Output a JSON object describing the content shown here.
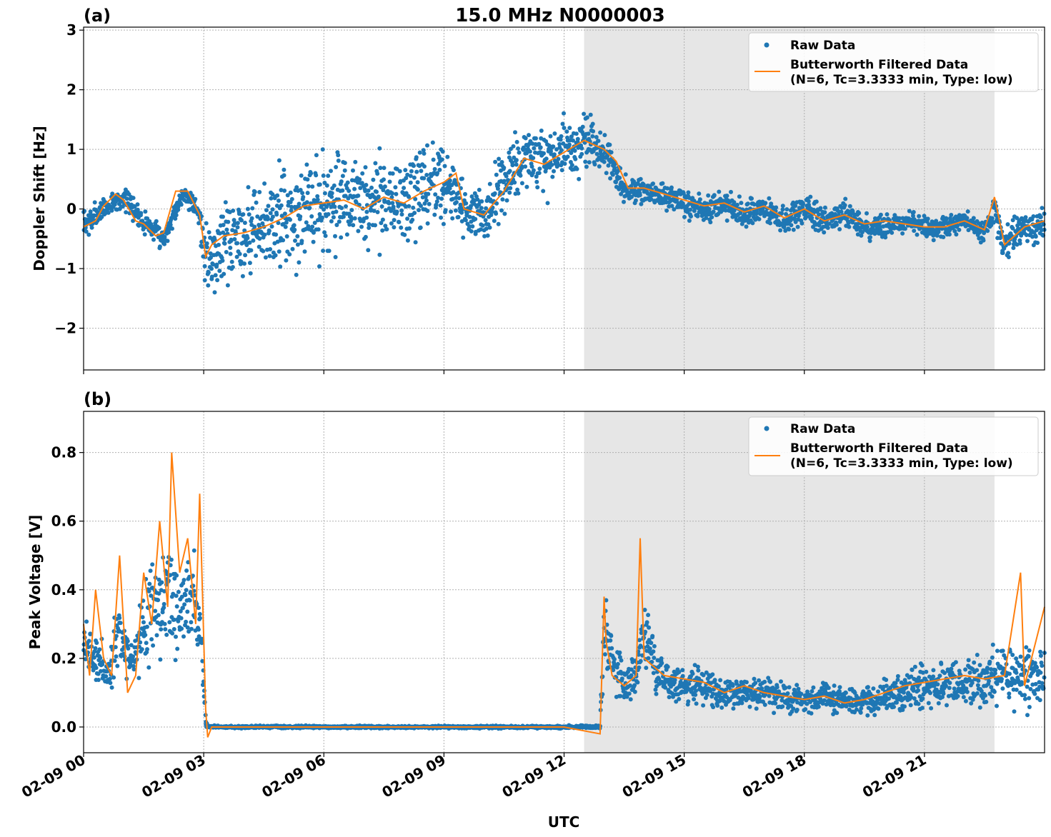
{
  "figure": {
    "title": "15.0 MHz N0000003",
    "xlabel": "UTC",
    "xtick_labels": [
      "02-09 00",
      "02-09 03",
      "02-09 06",
      "02-09 09",
      "02-09 12",
      "02-09 15",
      "02-09 18",
      "02-09 21"
    ],
    "shade_color": "#e6e6e6",
    "raw_color": "#1f77b4",
    "filtered_color": "#ff7f0e"
  },
  "chart_data": [
    {
      "panel_label": "(a)",
      "type": "scatter",
      "ylabel": "Doppler Shift [Hz]",
      "x_unit": "hours UTC on 02-09",
      "xlim": [
        0,
        24
      ],
      "ylim": [
        -2.7,
        3.05
      ],
      "yticks": [
        -2,
        -1,
        0,
        1,
        2,
        3
      ],
      "ytick_labels": [
        "−2",
        "−1",
        "0",
        "1",
        "2",
        "3"
      ],
      "shaded_interval": [
        12.5,
        22.75
      ],
      "grid": true,
      "legend_position": "top-right",
      "legend": [
        "Raw Data",
        "Butterworth Filtered Data",
        "(N=6, Tc=3.3333 min, Type: low)"
      ],
      "series": [
        {
          "name": "Raw Data",
          "kind": "points",
          "x_hours": [
            0,
            0.5,
            1,
            1.5,
            2,
            2.5,
            2.9,
            3.05,
            3.5,
            4,
            4.5,
            5,
            5.5,
            6,
            6.5,
            7,
            7.5,
            8,
            8.5,
            9,
            9.5,
            10,
            10.5,
            11,
            11.5,
            12,
            12.5,
            13,
            13.3,
            13.5,
            14,
            14.5,
            15,
            15.5,
            16,
            16.5,
            17,
            17.5,
            18,
            18.5,
            19,
            19.5,
            20,
            20.5,
            21,
            21.5,
            22,
            22.5,
            22.75,
            23,
            23.5,
            24
          ],
          "median": [
            -0.3,
            0.0,
            0.2,
            -0.2,
            -0.5,
            0.3,
            -0.1,
            -0.9,
            -0.5,
            -0.4,
            -0.3,
            -0.1,
            0.0,
            0.1,
            0.2,
            0.0,
            0.2,
            0.1,
            0.3,
            0.5,
            -0.1,
            -0.1,
            0.4,
            0.9,
            0.8,
            1.0,
            1.1,
            1.0,
            0.6,
            0.3,
            0.3,
            0.2,
            0.1,
            0.0,
            0.1,
            -0.1,
            0.0,
            -0.2,
            0.0,
            -0.2,
            -0.1,
            -0.3,
            -0.3,
            -0.2,
            -0.3,
            -0.3,
            -0.2,
            -0.4,
            0.0,
            -0.6,
            -0.3,
            -0.3
          ],
          "spread": [
            0.3,
            0.2,
            0.2,
            0.2,
            0.2,
            0.15,
            0.25,
            0.6,
            0.75,
            0.8,
            0.85,
            0.9,
            0.9,
            0.9,
            0.9,
            0.9,
            0.9,
            0.85,
            0.8,
            0.75,
            0.55,
            0.5,
            0.55,
            0.6,
            0.6,
            0.55,
            0.5,
            0.4,
            0.3,
            0.25,
            0.25,
            0.2,
            0.25,
            0.25,
            0.25,
            0.25,
            0.25,
            0.25,
            0.25,
            0.25,
            0.25,
            0.25,
            0.25,
            0.2,
            0.2,
            0.2,
            0.2,
            0.2,
            0.3,
            0.3,
            0.3,
            0.3
          ]
        },
        {
          "name": "Butterworth Filtered Data",
          "kind": "line",
          "x_hours": [
            0,
            0.3,
            0.5,
            0.8,
            1,
            1.3,
            1.5,
            1.8,
            2,
            2.3,
            2.6,
            2.9,
            3.05,
            3.2,
            3.5,
            4,
            4.5,
            5,
            5.5,
            6,
            6.5,
            7,
            7.5,
            8,
            8.5,
            9,
            9.3,
            9.5,
            10,
            10.5,
            11,
            11.5,
            12,
            12.5,
            13,
            13.3,
            13.6,
            14,
            14.5,
            15,
            15.5,
            16,
            16.5,
            17,
            17.5,
            18,
            18.5,
            19,
            19.5,
            20,
            20.5,
            21,
            21.5,
            22,
            22.5,
            22.75,
            23,
            23.5,
            24
          ],
          "y": [
            -0.3,
            -0.2,
            0.05,
            0.25,
            0.15,
            -0.2,
            -0.25,
            -0.45,
            -0.4,
            0.3,
            0.3,
            -0.1,
            -0.8,
            -0.6,
            -0.45,
            -0.4,
            -0.3,
            -0.15,
            0.05,
            0.1,
            0.15,
            0.0,
            0.2,
            0.1,
            0.3,
            0.45,
            0.6,
            0.0,
            -0.1,
            0.3,
            0.85,
            0.75,
            0.95,
            1.15,
            1.0,
            0.8,
            0.35,
            0.35,
            0.25,
            0.15,
            0.05,
            0.1,
            -0.05,
            0.05,
            -0.15,
            0.0,
            -0.2,
            -0.1,
            -0.25,
            -0.2,
            -0.25,
            -0.3,
            -0.3,
            -0.2,
            -0.35,
            0.2,
            -0.6,
            -0.3,
            -0.2
          ]
        }
      ]
    },
    {
      "panel_label": "(b)",
      "type": "scatter",
      "ylabel": "Peak Voltage [V]",
      "x_unit": "hours UTC on 02-09",
      "xlim": [
        0,
        24
      ],
      "ylim": [
        -0.075,
        0.92
      ],
      "yticks": [
        0.0,
        0.2,
        0.4,
        0.6,
        0.8
      ],
      "ytick_labels": [
        "0.0",
        "0.2",
        "0.4",
        "0.6",
        "0.8"
      ],
      "shaded_interval": [
        12.5,
        22.75
      ],
      "grid": true,
      "legend_position": "top-right",
      "legend": [
        "Raw Data",
        "Butterworth Filtered Data",
        "(N=6, Tc=3.3333 min, Type: low)"
      ],
      "series": [
        {
          "name": "Raw Data",
          "kind": "points",
          "x_hours": [
            0,
            0.3,
            0.6,
            0.9,
            1.2,
            1.5,
            1.8,
            2.1,
            2.4,
            2.7,
            2.9,
            3.05,
            3.1,
            4,
            6,
            8,
            10,
            12,
            12.9,
            13.0,
            13.2,
            13.5,
            13.8,
            14.0,
            14.3,
            14.6,
            15,
            15.5,
            16,
            16.5,
            17,
            17.5,
            18,
            18.5,
            19,
            19.5,
            20,
            20.5,
            21,
            21.5,
            22,
            22.5,
            23,
            23.5,
            24
          ],
          "median": [
            0.25,
            0.2,
            0.15,
            0.3,
            0.18,
            0.3,
            0.35,
            0.4,
            0.3,
            0.4,
            0.3,
            0.02,
            0.0,
            0.0,
            0.0,
            0.0,
            0.0,
            0.0,
            0.0,
            0.3,
            0.2,
            0.12,
            0.15,
            0.3,
            0.15,
            0.14,
            0.12,
            0.12,
            0.1,
            0.1,
            0.1,
            0.09,
            0.08,
            0.09,
            0.08,
            0.07,
            0.09,
            0.1,
            0.12,
            0.12,
            0.13,
            0.14,
            0.15,
            0.14,
            0.16
          ],
          "spread": [
            0.1,
            0.08,
            0.07,
            0.12,
            0.08,
            0.15,
            0.15,
            0.2,
            0.15,
            0.18,
            0.12,
            0.02,
            0.004,
            0.004,
            0.004,
            0.004,
            0.004,
            0.004,
            0.006,
            0.15,
            0.1,
            0.06,
            0.08,
            0.12,
            0.08,
            0.07,
            0.06,
            0.06,
            0.05,
            0.05,
            0.05,
            0.05,
            0.04,
            0.05,
            0.04,
            0.04,
            0.05,
            0.06,
            0.07,
            0.07,
            0.08,
            0.08,
            0.09,
            0.09,
            0.1
          ]
        },
        {
          "name": "Butterworth Filtered Data",
          "kind": "line",
          "x_hours": [
            0,
            0.15,
            0.3,
            0.5,
            0.7,
            0.9,
            1.1,
            1.3,
            1.5,
            1.7,
            1.9,
            2.1,
            2.2,
            2.4,
            2.6,
            2.8,
            2.9,
            3.05,
            3.1,
            3.2,
            6,
            9,
            12,
            12.9,
            13.0,
            13.05,
            13.2,
            13.5,
            13.8,
            13.9,
            14.0,
            14.2,
            14.5,
            15,
            15.5,
            16,
            16.5,
            17,
            17.5,
            18,
            18.5,
            19,
            19.5,
            20,
            20.5,
            21,
            21.5,
            22,
            22.5,
            23,
            23.4,
            23.5,
            24
          ],
          "y": [
            0.3,
            0.15,
            0.4,
            0.2,
            0.15,
            0.5,
            0.1,
            0.15,
            0.45,
            0.3,
            0.6,
            0.35,
            0.8,
            0.45,
            0.55,
            0.3,
            0.68,
            0.05,
            -0.03,
            0.0,
            0.0,
            0.0,
            0.0,
            -0.02,
            0.38,
            0.25,
            0.15,
            0.12,
            0.15,
            0.55,
            0.2,
            0.18,
            0.15,
            0.14,
            0.13,
            0.1,
            0.12,
            0.1,
            0.09,
            0.08,
            0.09,
            0.07,
            0.08,
            0.1,
            0.12,
            0.13,
            0.14,
            0.15,
            0.14,
            0.15,
            0.45,
            0.12,
            0.35
          ]
        }
      ]
    }
  ]
}
